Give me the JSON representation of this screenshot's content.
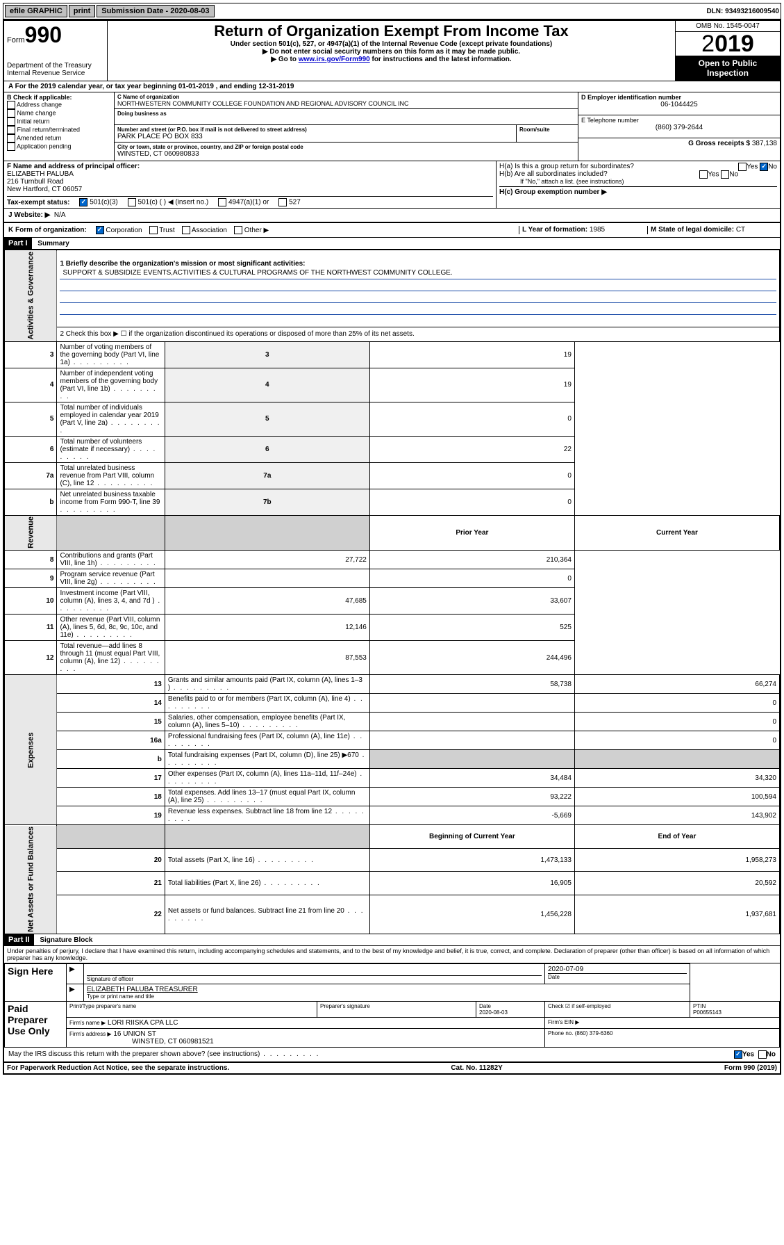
{
  "colors": {
    "black": "#000000",
    "toolbar_btn": "#c0c0c0",
    "checked_blue": "#0066cc",
    "link": "#0000cc",
    "grey_cell": "#d0d0d0",
    "vert_bg": "#e8e8e8",
    "underline_blue": "#1a4ba8"
  },
  "toolbar": {
    "efile": "efile GRAPHIC",
    "print": "print",
    "sub_date_lbl": "Submission Date - 2020-08-03",
    "dln": "DLN: 93493216009540"
  },
  "header": {
    "form_word": "Form",
    "form_num": "990",
    "dept": "Department of the Treasury",
    "irs": "Internal Revenue Service",
    "title": "Return of Organization Exempt From Income Tax",
    "subtitle": "Under section 501(c), 527, or 4947(a)(1) of the Internal Revenue Code (except private foundations)",
    "note1": "▶ Do not enter social security numbers on this form as it may be made public.",
    "note2_pre": "▶ Go to ",
    "note2_link": "www.irs.gov/Form990",
    "note2_post": " for instructions and the latest information.",
    "omb": "OMB No. 1545-0047",
    "year": "2019",
    "open": "Open to Public Inspection"
  },
  "line_a": "A For the 2019 calendar year, or tax year beginning 01-01-2019    , and ending 12-31-2019",
  "box_b": {
    "title": "B Check if applicable:",
    "opts": [
      "Address change",
      "Name change",
      "Initial return",
      "Final return/terminated",
      "Amended return",
      "Application pending"
    ]
  },
  "box_c": {
    "lbl_name": "C Name of organization",
    "name": "NORTHWESTERN COMMUNITY COLLEGE FOUNDATION AND REGIONAL ADVISORY COUNCIL INC",
    "lbl_dba": "Doing business as",
    "dba": "",
    "lbl_addr": "Number and street (or P.O. box if mail is not delivered to street address)",
    "addr": "PARK PLACE PO BOX 833",
    "lbl_room": "Room/suite",
    "lbl_city": "City or town, state or province, country, and ZIP or foreign postal code",
    "city": "WINSTED, CT  060980833"
  },
  "box_d": {
    "lbl": "D Employer identification number",
    "val": "06-1044425"
  },
  "box_e": {
    "lbl": "E Telephone number",
    "val": "(860) 379-2644"
  },
  "box_g": {
    "lbl": "G Gross receipts $",
    "val": "387,138"
  },
  "box_f": {
    "lbl": "F Name and address of principal officer:",
    "name": "ELIZABETH PALUBA",
    "street": "216 Turnbull Road",
    "city": "New Hartford, CT  06057"
  },
  "box_h": {
    "a": "H(a)  Is this a group return for subordinates?",
    "b": "H(b)  Are all subordinates included?",
    "b_note": "If \"No,\" attach a list. (see instructions)",
    "c": "H(c)  Group exemption number ▶",
    "yes": "Yes",
    "no": "No"
  },
  "box_i": {
    "lbl": "Tax-exempt status:",
    "o1": "501(c)(3)",
    "o2": "501(c) (  ) ◀ (insert no.)",
    "o3": "4947(a)(1) or",
    "o4": "527"
  },
  "box_j": {
    "lbl": "J   Website: ▶",
    "val": "N/A"
  },
  "box_k": {
    "lbl": "K Form of organization:",
    "opts": [
      "Corporation",
      "Trust",
      "Association",
      "Other ▶"
    ]
  },
  "box_l": {
    "lbl": "L Year of formation:",
    "val": "1985"
  },
  "box_m": {
    "lbl": "M State of legal domicile:",
    "val": "CT"
  },
  "part1": {
    "hdr": "Part I",
    "title": "Summary",
    "line1_lbl": "1  Briefly describe the organization's mission or most significant activities:",
    "line1_val": "SUPPORT & SUBSIDIZE EVENTS,ACTIVITIES & CULTURAL PROGRAMS OF THE NORTHWEST COMMUNITY COLLEGE.",
    "line2": "2   Check this box ▶ ☐  if the organization discontinued its operations or disposed of more than 25% of its net assets.",
    "vert1": "Activities & Governance",
    "vert2": "Revenue",
    "vert3": "Expenses",
    "vert4": "Net Assets or Fund Balances",
    "simple_rows": [
      {
        "n": "3",
        "t": "Number of voting members of the governing body (Part VI, line 1a)",
        "box": "3",
        "v": "19"
      },
      {
        "n": "4",
        "t": "Number of independent voting members of the governing body (Part VI, line 1b)",
        "box": "4",
        "v": "19"
      },
      {
        "n": "5",
        "t": "Total number of individuals employed in calendar year 2019 (Part V, line 2a)",
        "box": "5",
        "v": "0"
      },
      {
        "n": "6",
        "t": "Total number of volunteers (estimate if necessary)",
        "box": "6",
        "v": "22"
      },
      {
        "n": "7a",
        "t": "Total unrelated business revenue from Part VIII, column (C), line 12",
        "box": "7a",
        "v": "0"
      },
      {
        "n": "b",
        "t": "Net unrelated business taxable income from Form 990-T, line 39",
        "box": "7b",
        "v": "0"
      }
    ],
    "two_col_header": {
      "py": "Prior Year",
      "cy": "Current Year"
    },
    "revenue_rows": [
      {
        "n": "8",
        "t": "Contributions and grants (Part VIII, line 1h)",
        "py": "27,722",
        "cy": "210,364"
      },
      {
        "n": "9",
        "t": "Program service revenue (Part VIII, line 2g)",
        "py": "",
        "cy": "0"
      },
      {
        "n": "10",
        "t": "Investment income (Part VIII, column (A), lines 3, 4, and 7d )",
        "py": "47,685",
        "cy": "33,607"
      },
      {
        "n": "11",
        "t": "Other revenue (Part VIII, column (A), lines 5, 6d, 8c, 9c, 10c, and 11e)",
        "py": "12,146",
        "cy": "525"
      },
      {
        "n": "12",
        "t": "Total revenue—add lines 8 through 11 (must equal Part VIII, column (A), line 12)",
        "py": "87,553",
        "cy": "244,496"
      }
    ],
    "expense_rows": [
      {
        "n": "13",
        "t": "Grants and similar amounts paid (Part IX, column (A), lines 1–3 )",
        "py": "58,738",
        "cy": "66,274"
      },
      {
        "n": "14",
        "t": "Benefits paid to or for members (Part IX, column (A), line 4)",
        "py": "",
        "cy": "0"
      },
      {
        "n": "15",
        "t": "Salaries, other compensation, employee benefits (Part IX, column (A), lines 5–10)",
        "py": "",
        "cy": "0"
      },
      {
        "n": "16a",
        "t": "Professional fundraising fees (Part IX, column (A), line 11e)",
        "py": "",
        "cy": "0"
      },
      {
        "n": "b",
        "t": "Total fundraising expenses (Part IX, column (D), line 25) ▶670",
        "py": "GREY",
        "cy": "GREY"
      },
      {
        "n": "17",
        "t": "Other expenses (Part IX, column (A), lines 11a–11d, 11f–24e)",
        "py": "34,484",
        "cy": "34,320"
      },
      {
        "n": "18",
        "t": "Total expenses. Add lines 13–17 (must equal Part IX, column (A), line 25)",
        "py": "93,222",
        "cy": "100,594"
      },
      {
        "n": "19",
        "t": "Revenue less expenses. Subtract line 18 from line 12",
        "py": "-5,669",
        "cy": "143,902"
      }
    ],
    "na_header": {
      "py": "Beginning of Current Year",
      "cy": "End of Year"
    },
    "na_rows": [
      {
        "n": "20",
        "t": "Total assets (Part X, line 16)",
        "py": "1,473,133",
        "cy": "1,958,273"
      },
      {
        "n": "21",
        "t": "Total liabilities (Part X, line 26)",
        "py": "16,905",
        "cy": "20,592"
      },
      {
        "n": "22",
        "t": "Net assets or fund balances. Subtract line 21 from line 20",
        "py": "1,456,228",
        "cy": "1,937,681"
      }
    ]
  },
  "part2": {
    "hdr": "Part II",
    "title": "Signature Block",
    "perjury": "Under penalties of perjury, I declare that I have examined this return, including accompanying schedules and statements, and to the best of my knowledge and belief, it is true, correct, and complete. Declaration of preparer (other than officer) is based on all information of which preparer has any knowledge.",
    "sign_here": "Sign Here",
    "sig_officer": "Signature of officer",
    "sig_date": "2020-07-09",
    "date_lbl": "Date",
    "officer_name": "ELIZABETH PALUBA  TREASURER",
    "type_name": "Type or print name and title",
    "paid": "Paid Preparer Use Only",
    "prep_name_lbl": "Print/Type preparer's name",
    "prep_sig_lbl": "Preparer's signature",
    "prep_date_lbl": "Date",
    "prep_date": "2020-08-03",
    "check_if": "Check ☑ if self-employed",
    "ptin_lbl": "PTIN",
    "ptin": "P00655143",
    "firm_name_lbl": "Firm's name      ▶",
    "firm_name": "LORI RIISKA CPA LLC",
    "firm_ein_lbl": "Firm's EIN ▶",
    "firm_addr_lbl": "Firm's address ▶",
    "firm_addr": "16 UNION ST",
    "firm_city": "WINSTED, CT  060981521",
    "phone_lbl": "Phone no.",
    "phone": "(860) 379-6360",
    "discuss": "May the IRS discuss this return with the preparer shown above? (see instructions)"
  },
  "footer": {
    "left": "For Paperwork Reduction Act Notice, see the separate instructions.",
    "mid": "Cat. No. 11282Y",
    "right": "Form 990 (2019)"
  }
}
